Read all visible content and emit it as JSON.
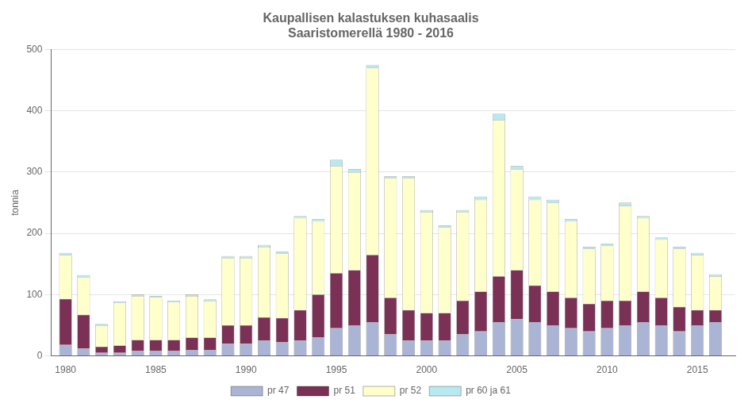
{
  "chart_data": {
    "type": "bar",
    "stacked": true,
    "title": "Kaupallisen kalastuksen kuhasaalis\nSaaristomerellä 1980 - 2016",
    "ylabel": "tonnia",
    "x": [
      1980,
      1981,
      1982,
      1983,
      1984,
      1985,
      1986,
      1987,
      1988,
      1989,
      1990,
      1991,
      1992,
      1993,
      1994,
      1995,
      1996,
      1997,
      1998,
      1999,
      2000,
      2001,
      2002,
      2003,
      2004,
      2005,
      2006,
      2007,
      2008,
      2009,
      2010,
      2011,
      2012,
      2013,
      2014,
      2015,
      2016
    ],
    "series": [
      {
        "name": "pr 47",
        "color": "#aab4d4",
        "values": [
          18,
          12,
          5,
          5,
          8,
          8,
          8,
          10,
          10,
          20,
          20,
          25,
          22,
          25,
          30,
          45,
          50,
          55,
          35,
          25,
          25,
          25,
          35,
          40,
          55,
          60,
          55,
          50,
          45,
          40,
          45,
          50,
          55,
          50,
          40,
          50,
          55
        ]
      },
      {
        "name": "pr 51",
        "color": "#7b3055",
        "values": [
          75,
          55,
          10,
          12,
          18,
          18,
          18,
          20,
          20,
          30,
          30,
          38,
          40,
          50,
          70,
          90,
          90,
          110,
          60,
          50,
          45,
          45,
          55,
          65,
          75,
          80,
          60,
          55,
          50,
          45,
          45,
          40,
          50,
          45,
          40,
          25,
          20
        ]
      },
      {
        "name": "pr 52",
        "color": "#ffffcc",
        "values": [
          72,
          62,
          35,
          70,
          72,
          70,
          62,
          68,
          60,
          110,
          110,
          115,
          105,
          150,
          120,
          175,
          160,
          305,
          195,
          215,
          165,
          140,
          145,
          150,
          255,
          165,
          140,
          145,
          125,
          90,
          90,
          155,
          120,
          95,
          95,
          90,
          55
        ]
      },
      {
        "name": "pr 60 ja 61",
        "color": "#b8e8f0",
        "values": [
          3,
          3,
          2,
          2,
          2,
          2,
          2,
          2,
          2,
          3,
          3,
          3,
          3,
          3,
          3,
          10,
          5,
          5,
          3,
          3,
          3,
          3,
          3,
          5,
          10,
          5,
          5,
          5,
          3,
          3,
          3,
          5,
          3,
          3,
          3,
          3,
          3
        ]
      }
    ],
    "xlim": [
      1979.2,
      2017.1
    ],
    "xticks": [
      1980,
      1985,
      1990,
      1995,
      2000,
      2005,
      2010,
      2015
    ],
    "ylim": [
      0,
      500
    ],
    "yticks": [
      0,
      100,
      200,
      300,
      400,
      500
    ],
    "grid": true,
    "legend": "bottom"
  }
}
